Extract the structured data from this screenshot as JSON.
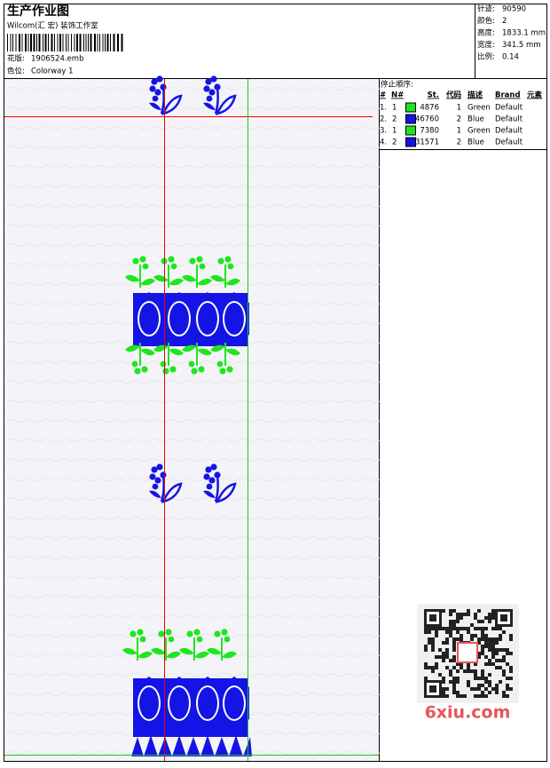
{
  "header": {
    "title": "生产作业图",
    "subtitle": "Wilcom(汇 宏) 装饰工作室",
    "design_label": "花版:",
    "design": "1906524.emb",
    "colorway_label": "色位:",
    "colorway": "Colorway 1"
  },
  "info": [
    {
      "label": "针迹:",
      "value": "90590"
    },
    {
      "label": "颜色:",
      "value": "2"
    },
    {
      "label": "高度:",
      "value": "1833.1 mm"
    },
    {
      "label": "宽度:",
      "value": "341.5 mm"
    },
    {
      "label": "比例:",
      "value": "0.14"
    }
  ],
  "stop_sequence": {
    "title": "停止顺序:",
    "columns": [
      "#",
      "N#",
      "St.",
      "代码",
      "描述",
      "Brand",
      "元素"
    ],
    "rows": [
      {
        "index": "1.",
        "n": "1",
        "color": "#1ee61e",
        "stitches": "4876",
        "code": "1",
        "description": "Green",
        "brand": "Default"
      },
      {
        "index": "2.",
        "n": "2",
        "color": "#1414e6",
        "stitches": "46760",
        "code": "2",
        "description": "Blue",
        "brand": "Default"
      },
      {
        "index": "3.",
        "n": "1",
        "color": "#1ee61e",
        "stitches": "7380",
        "code": "1",
        "description": "Green",
        "brand": "Default"
      },
      {
        "index": "4.",
        "n": "2",
        "color": "#1414e6",
        "stitches": "31571",
        "code": "2",
        "description": "Blue",
        "brand": "Default"
      }
    ]
  },
  "watermark": "6xiu.com"
}
